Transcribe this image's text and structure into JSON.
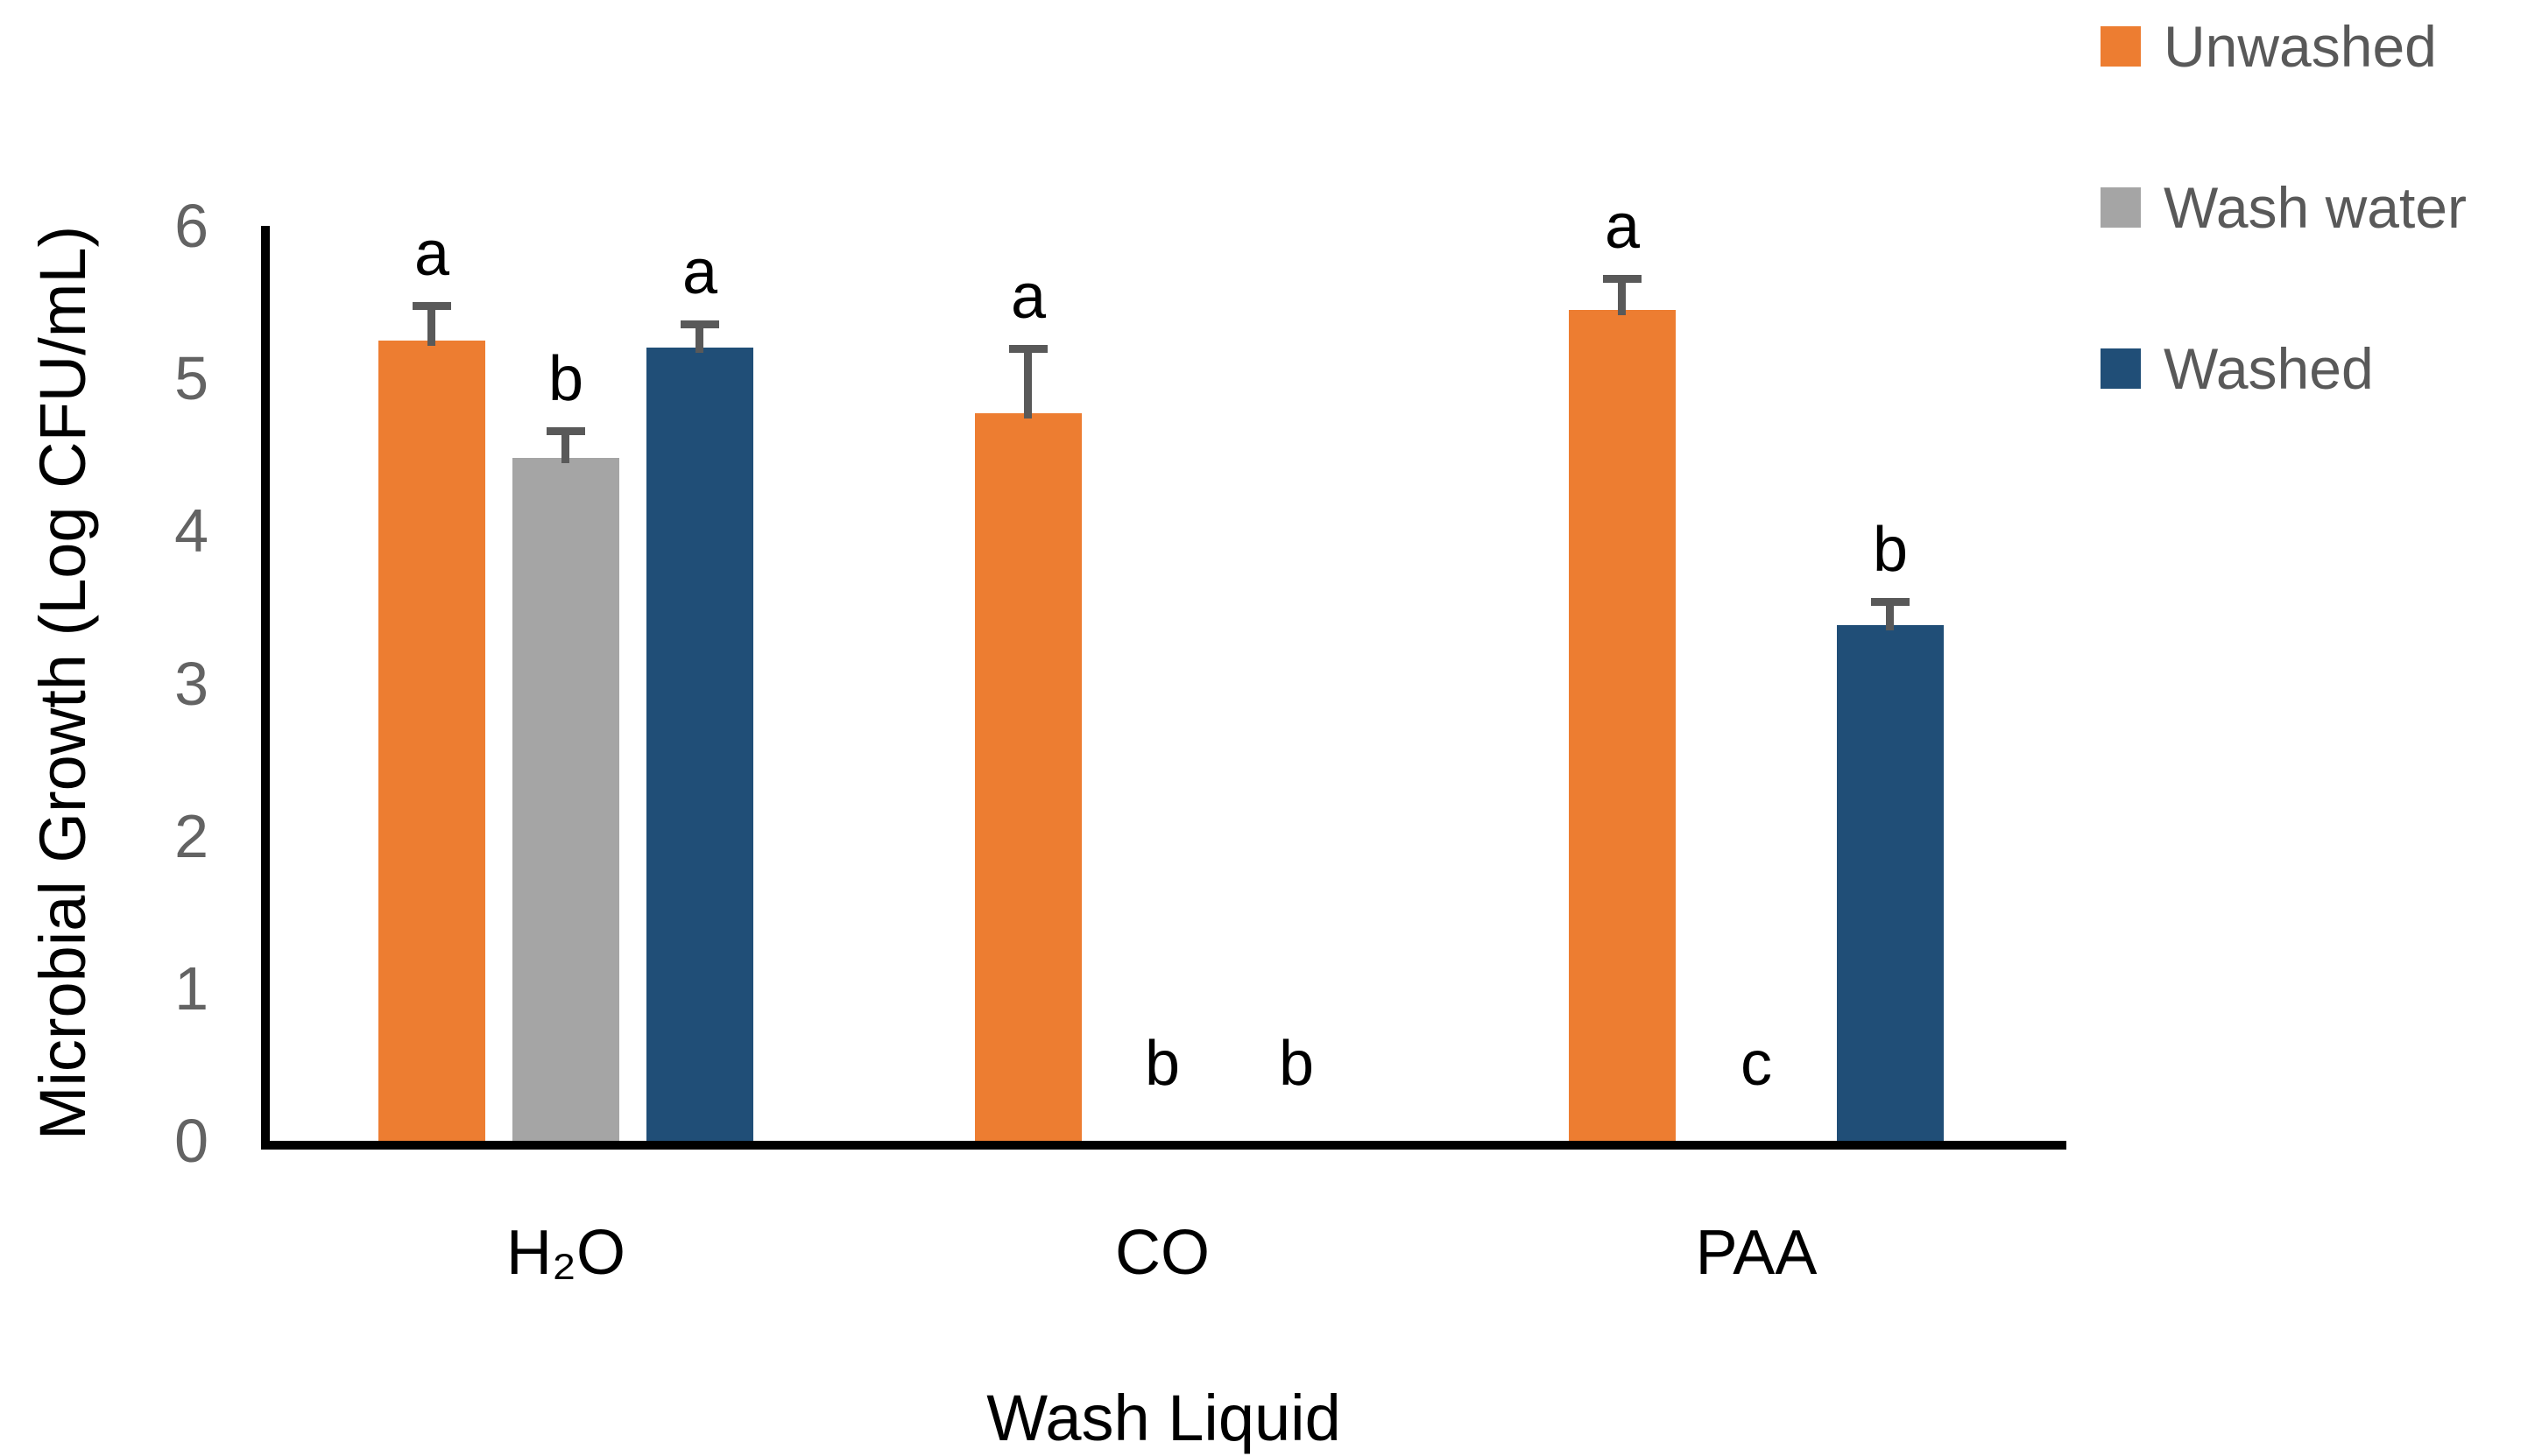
{
  "chart_data": {
    "type": "bar",
    "title": "",
    "xlabel": "Wash Liquid",
    "ylabel": "Microbial Growth (Log CFU/mL)",
    "ylim": [
      0,
      6
    ],
    "yticks": [
      0,
      1,
      2,
      3,
      4,
      5,
      6
    ],
    "grid": false,
    "legend_position": "top-right",
    "categories": [
      "H₂O",
      "CO",
      "PAA"
    ],
    "series": [
      {
        "name": "Unwashed",
        "color": "#ED7D31",
        "values": [
          5.25,
          4.77,
          5.45
        ],
        "errors": [
          0.25,
          0.45,
          0.23
        ],
        "letters": [
          "a",
          "a",
          "a"
        ]
      },
      {
        "name": "Wash water",
        "color": "#A5A5A5",
        "values": [
          4.48,
          null,
          null
        ],
        "errors": [
          0.2,
          null,
          null
        ],
        "letters": [
          "b",
          "b",
          "c"
        ]
      },
      {
        "name": "Washed",
        "color": "#204E77",
        "values": [
          5.2,
          null,
          3.38
        ],
        "errors": [
          0.18,
          null,
          0.18
        ],
        "letters": [
          "a",
          "b",
          "b"
        ]
      }
    ],
    "colors": {
      "axis": "#000000",
      "tick_labels": "#636363",
      "error_bars": "#595959",
      "significance_letters": "#000000"
    }
  }
}
